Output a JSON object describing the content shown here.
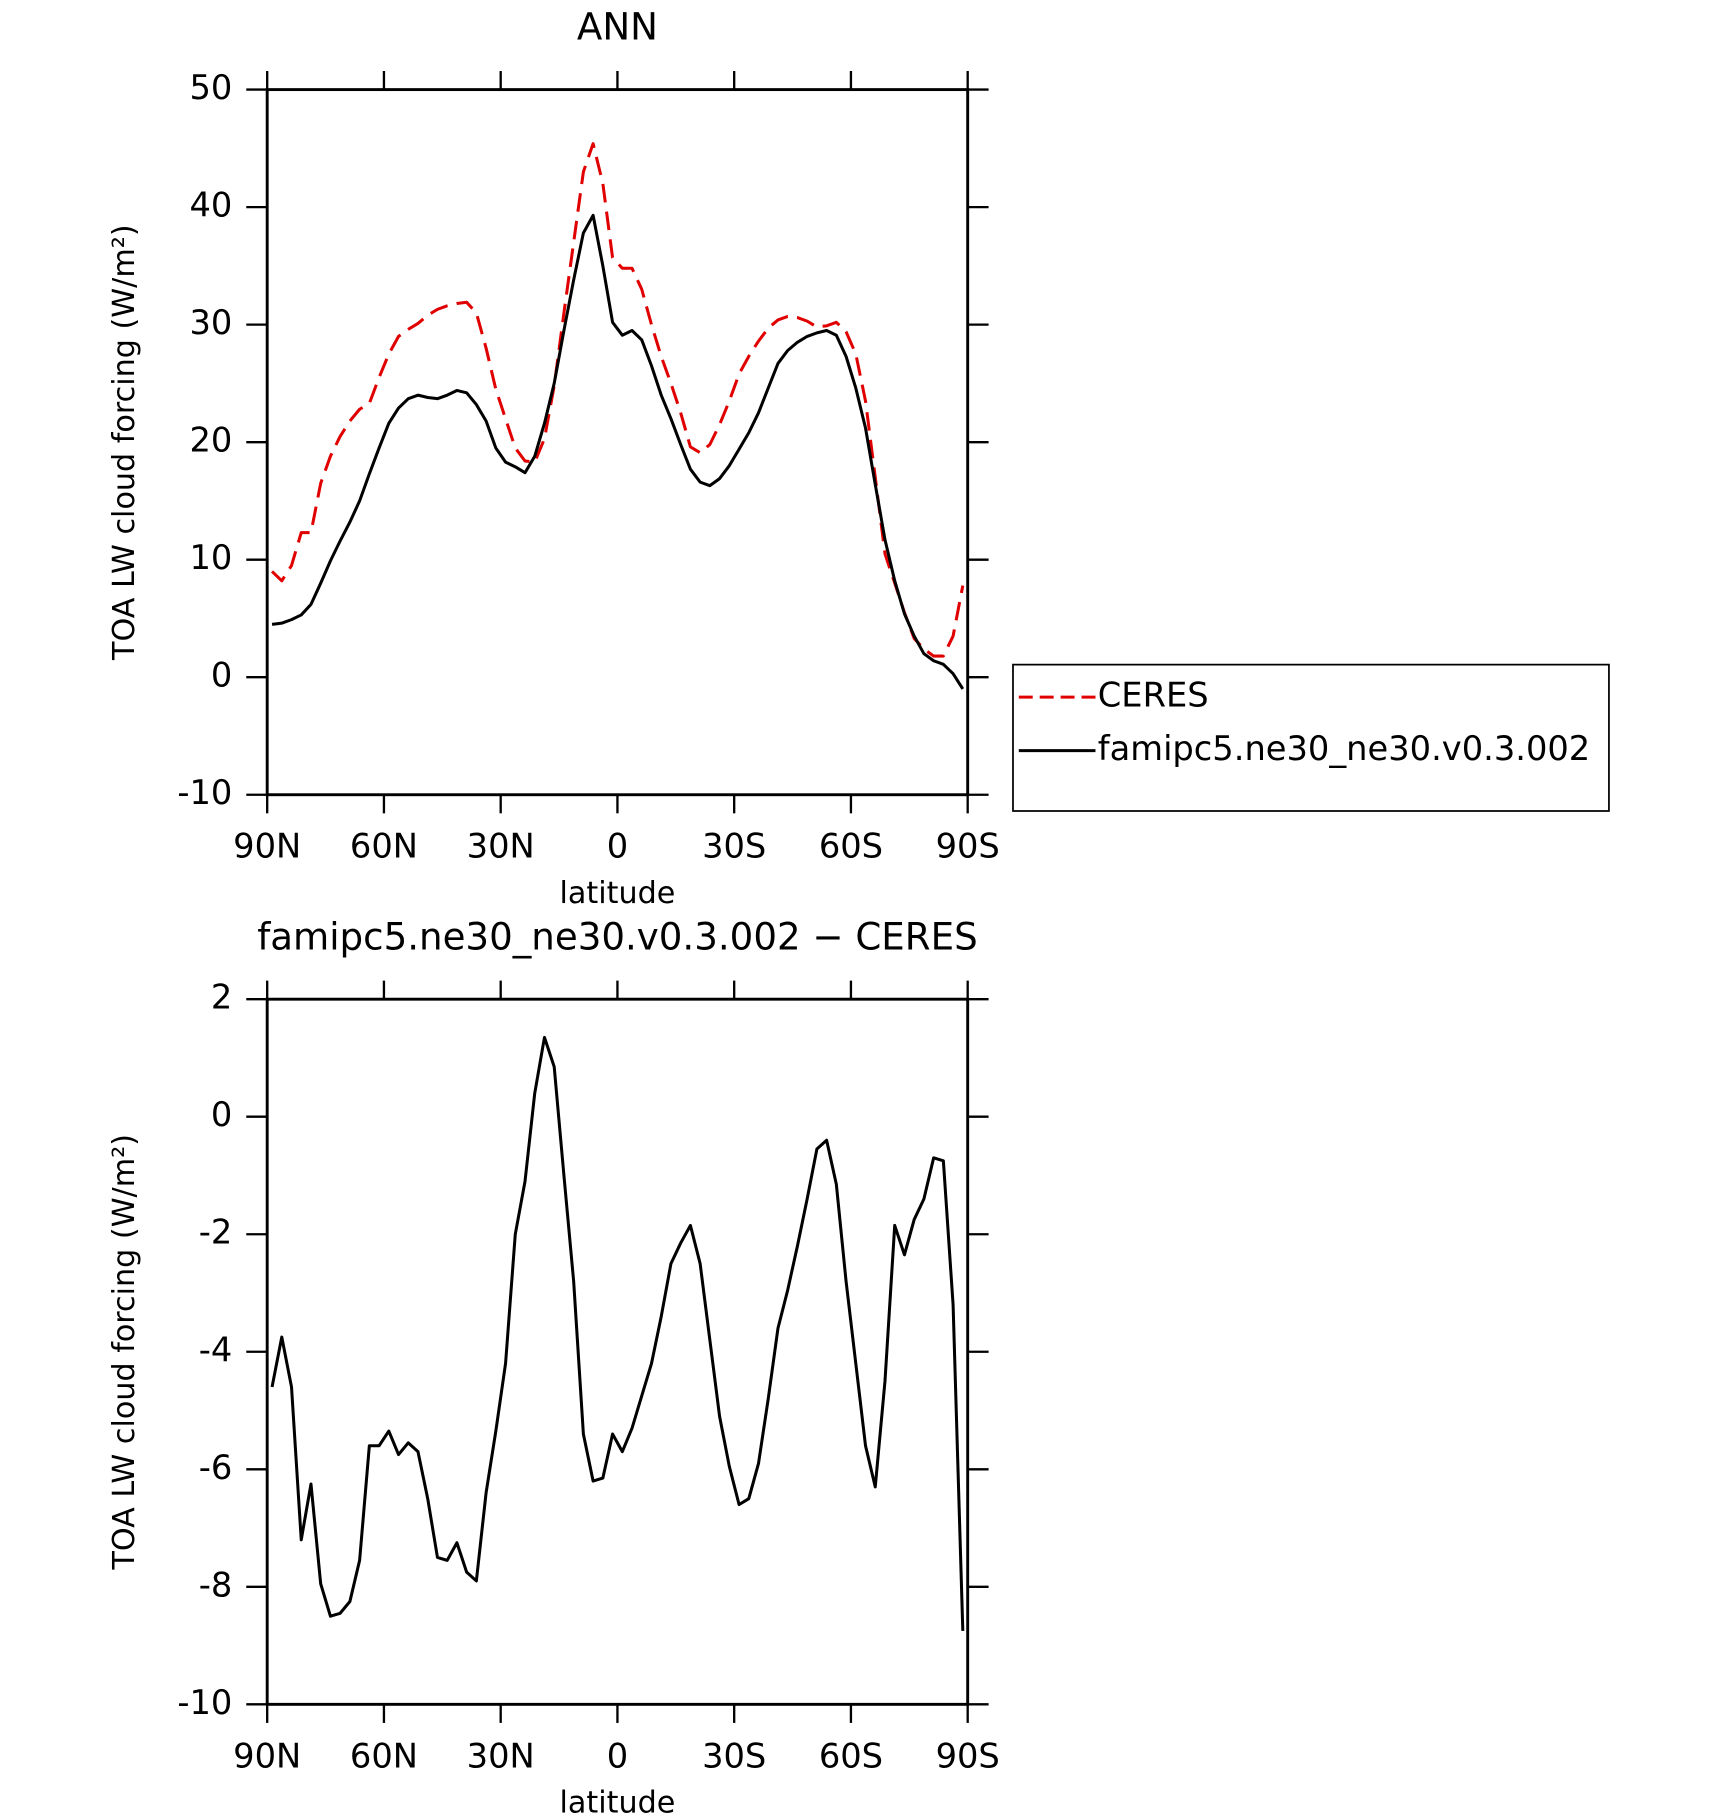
{
  "chart_data": [
    {
      "type": "line",
      "title": "ANN",
      "x_label": "latitude",
      "y_label": "TOA LW cloud forcing (W/m²)",
      "x": [
        88.75,
        86.25,
        83.75,
        81.25,
        78.75,
        76.25,
        73.75,
        71.25,
        68.75,
        66.25,
        63.75,
        61.25,
        58.75,
        56.25,
        53.75,
        51.25,
        48.75,
        46.25,
        43.75,
        41.25,
        38.75,
        36.25,
        33.75,
        31.25,
        28.75,
        26.25,
        23.75,
        21.25,
        18.75,
        16.25,
        13.75,
        11.25,
        8.75,
        6.25,
        3.75,
        1.25,
        -1.25,
        -3.75,
        -6.25,
        -8.75,
        -11.25,
        -13.75,
        -16.25,
        -18.75,
        -21.25,
        -23.75,
        -26.25,
        -28.75,
        -31.25,
        -33.75,
        -36.25,
        -38.75,
        -41.25,
        -43.75,
        -46.25,
        -48.75,
        -51.25,
        -53.75,
        -56.25,
        -58.75,
        -61.25,
        -63.75,
        -66.25,
        -68.75,
        -71.25,
        -73.75,
        -76.25,
        -78.75,
        -81.25,
        -83.75,
        -86.25,
        -88.75
      ],
      "series": [
        {
          "name": "CERES",
          "color": "#e00000",
          "dashed": true,
          "values": [
            9.0,
            8.2,
            9.5,
            12.3,
            12.3,
            16.5,
            18.8,
            20.5,
            21.8,
            22.8,
            23.3,
            25.5,
            27.5,
            29.0,
            29.6,
            30.1,
            30.8,
            31.3,
            31.6,
            31.8,
            31.9,
            31.0,
            28.0,
            24.5,
            22.0,
            19.5,
            18.4,
            18.3,
            20.3,
            24.8,
            31.0,
            37.0,
            43.0,
            45.4,
            42.0,
            35.7,
            34.8,
            34.8,
            33.0,
            30.0,
            27.3,
            25.0,
            22.5,
            19.6,
            19.1,
            19.8,
            21.5,
            23.5,
            25.8,
            27.3,
            28.6,
            29.7,
            30.4,
            30.7,
            30.6,
            30.3,
            29.8,
            29.9,
            30.2,
            29.4,
            27.5,
            23.5,
            17.0,
            10.5,
            8.0,
            5.5,
            3.3,
            2.4,
            1.8,
            1.8,
            3.5,
            7.8
          ]
        },
        {
          "name": "famipc5.ne30_ne30.v0.3.002",
          "color": "#000000",
          "dashed": false,
          "values": [
            4.5,
            4.6,
            4.9,
            5.3,
            6.2,
            8.0,
            9.9,
            11.6,
            13.2,
            15.0,
            17.3,
            19.5,
            21.6,
            22.9,
            23.7,
            24.0,
            23.8,
            23.7,
            24.0,
            24.4,
            24.2,
            23.2,
            21.8,
            19.5,
            18.3,
            17.9,
            17.4,
            18.8,
            21.6,
            25.0,
            29.5,
            33.8,
            37.8,
            39.3,
            35.0,
            30.2,
            29.1,
            29.5,
            28.7,
            26.5,
            24.0,
            22.0,
            19.8,
            17.7,
            16.6,
            16.3,
            16.9,
            18.0,
            19.4,
            20.8,
            22.5,
            24.6,
            26.7,
            27.8,
            28.5,
            29.0,
            29.3,
            29.5,
            29.1,
            27.3,
            24.6,
            21.2,
            16.4,
            11.7,
            8.2,
            5.4,
            3.5,
            2.0,
            1.4,
            1.1,
            0.3,
            -1.0
          ]
        }
      ],
      "xlim": [
        90,
        -90
      ],
      "xticks": [
        {
          "value": 90,
          "label": "90N"
        },
        {
          "value": 60,
          "label": "60N"
        },
        {
          "value": 30,
          "label": "30N"
        },
        0,
        {
          "value": -30,
          "label": "30S"
        },
        {
          "value": -60,
          "label": "60S"
        },
        {
          "value": -90,
          "label": "90S"
        }
      ],
      "ylim": [
        -10,
        50
      ],
      "yticks": [
        -10,
        0,
        10,
        20,
        30,
        40,
        50
      ],
      "legend": "right"
    },
    {
      "type": "line",
      "title": "famipc5.ne30_ne30.v0.3.002 − CERES",
      "x_label": "latitude",
      "y_label": "TOA LW cloud forcing (W/m²)",
      "x": [
        88.75,
        86.25,
        83.75,
        81.25,
        78.75,
        76.25,
        73.75,
        71.25,
        68.75,
        66.25,
        63.75,
        61.25,
        58.75,
        56.25,
        53.75,
        51.25,
        48.75,
        46.25,
        43.75,
        41.25,
        38.75,
        36.25,
        33.75,
        31.25,
        28.75,
        26.25,
        23.75,
        21.25,
        18.75,
        16.25,
        13.75,
        11.25,
        8.75,
        6.25,
        3.75,
        1.25,
        -1.25,
        -3.75,
        -6.25,
        -8.75,
        -11.25,
        -13.75,
        -16.25,
        -18.75,
        -21.25,
        -23.75,
        -26.25,
        -28.75,
        -31.25,
        -33.75,
        -36.25,
        -38.75,
        -41.25,
        -43.75,
        -46.25,
        -48.75,
        -51.25,
        -53.75,
        -56.25,
        -58.75,
        -61.25,
        -63.75,
        -66.25,
        -68.75,
        -71.25,
        -73.75,
        -76.25,
        -78.75,
        -81.25,
        -83.75,
        -86.25,
        -88.75
      ],
      "series": [
        {
          "color": "#000000",
          "values": [
            -4.6,
            -3.75,
            -4.6,
            -7.2,
            -6.25,
            -7.95,
            -8.5,
            -8.45,
            -8.25,
            -7.55,
            -5.6,
            -5.6,
            -5.35,
            -5.75,
            -5.55,
            -5.7,
            -6.5,
            -7.5,
            -7.55,
            -7.25,
            -7.75,
            -7.9,
            -6.4,
            -5.35,
            -4.2,
            -2.0,
            -1.1,
            0.4,
            1.35,
            0.85,
            -1.0,
            -2.8,
            -5.4,
            -6.2,
            -6.15,
            -5.4,
            -5.7,
            -5.3,
            -4.75,
            -4.2,
            -3.4,
            -2.5,
            -2.15,
            -1.85,
            -2.5,
            -3.8,
            -5.1,
            -5.95,
            -6.6,
            -6.5,
            -5.9,
            -4.8,
            -3.6,
            -2.95,
            -2.2,
            -1.4,
            -0.55,
            -0.4,
            -1.15,
            -2.8,
            -4.2,
            -5.6,
            -6.3,
            -4.5,
            -1.85,
            -2.35,
            -1.75,
            -1.4,
            -0.7,
            -0.75,
            -3.2,
            -8.75
          ]
        }
      ],
      "xlim": [
        90,
        -90
      ],
      "xticks": [
        {
          "value": 90,
          "label": "90N"
        },
        {
          "value": 60,
          "label": "60N"
        },
        {
          "value": 30,
          "label": "30N"
        },
        0,
        {
          "value": -30,
          "label": "30S"
        },
        {
          "value": -60,
          "label": "60S"
        },
        {
          "value": -90,
          "label": "90S"
        }
      ],
      "ylim": [
        -10,
        2
      ],
      "yticks": [
        -10,
        -8,
        -6,
        -4,
        -2,
        0,
        2
      ]
    }
  ]
}
